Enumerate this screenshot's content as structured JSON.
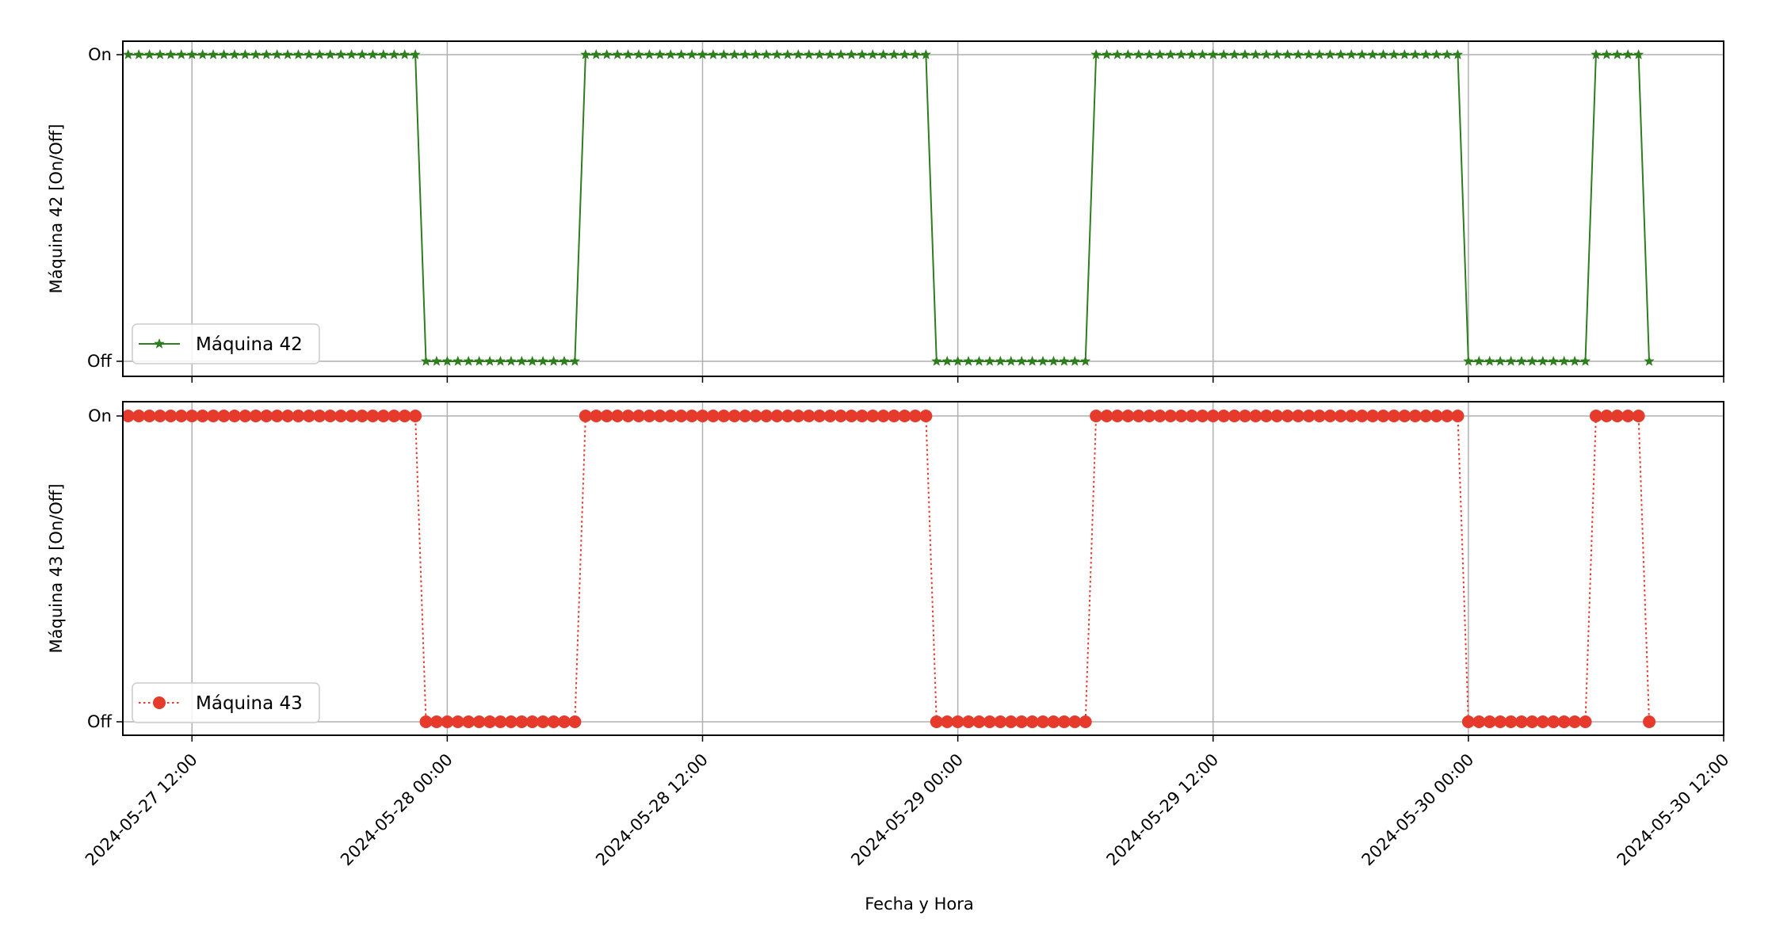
{
  "chart_data": {
    "type": "line",
    "xlabel": "Fecha y Hora",
    "x_ticks": [
      "2024-05-27 12:00",
      "2024-05-28 00:00",
      "2024-05-28 12:00",
      "2024-05-29 00:00",
      "2024-05-29 12:00",
      "2024-05-30 00:00",
      "2024-05-30 12:00"
    ],
    "xlim": [
      "2024-05-27 08:45",
      "2024-05-30 12:00"
    ],
    "grid": true,
    "sampling_interval_minutes": 30,
    "panels": [
      {
        "ylabel": "Máquina 42 [On/Off]",
        "y_ticks": [
          "Off",
          "On"
        ],
        "legend_position": "lower-left",
        "series": {
          "name": "Máquina 42",
          "color": "#2e7d1f",
          "line_style": "solid",
          "marker": "star",
          "on_intervals": [
            [
              "2024-05-27 09:00",
              "2024-05-27 22:30"
            ],
            [
              "2024-05-28 06:30",
              "2024-05-28 22:30"
            ],
            [
              "2024-05-29 06:30",
              "2024-05-29 23:30"
            ],
            [
              "2024-05-30 06:00",
              "2024-05-30 08:00"
            ]
          ],
          "off_intervals": [
            [
              "2024-05-27 23:00",
              "2024-05-28 06:00"
            ],
            [
              "2024-05-28 23:00",
              "2024-05-29 06:00"
            ],
            [
              "2024-05-30 00:00",
              "2024-05-30 05:30"
            ],
            [
              "2024-05-30 08:30",
              "2024-05-30 08:30"
            ]
          ]
        }
      },
      {
        "ylabel": "Máquina 43 [On/Off]",
        "y_ticks": [
          "Off",
          "On"
        ],
        "legend_position": "lower-left",
        "series": {
          "name": "Máquina 43",
          "color": "#e53a2c",
          "line_style": "dotted",
          "marker": "circle",
          "on_intervals": [
            [
              "2024-05-27 09:00",
              "2024-05-27 22:30"
            ],
            [
              "2024-05-28 06:30",
              "2024-05-28 22:30"
            ],
            [
              "2024-05-29 06:30",
              "2024-05-29 23:30"
            ],
            [
              "2024-05-30 06:00",
              "2024-05-30 08:00"
            ]
          ],
          "off_intervals": [
            [
              "2024-05-27 23:00",
              "2024-05-28 06:00"
            ],
            [
              "2024-05-28 23:00",
              "2024-05-29 06:00"
            ],
            [
              "2024-05-30 00:00",
              "2024-05-30 05:30"
            ],
            [
              "2024-05-30 08:30",
              "2024-05-30 08:30"
            ]
          ]
        }
      }
    ]
  }
}
